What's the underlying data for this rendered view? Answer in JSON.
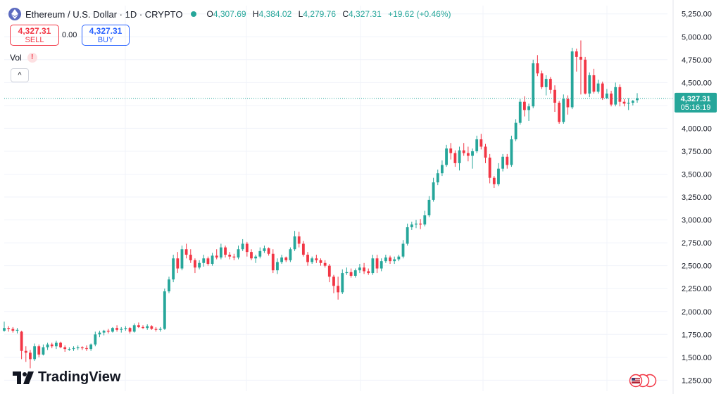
{
  "header": {
    "title": "Ethereum / U.S. Dollar · 1D · CRYPTO",
    "open_label": "O",
    "open": "4,307.69",
    "high_label": "H",
    "high": "4,384.02",
    "low_label": "L",
    "low": "4,279.76",
    "close_label": "C",
    "close": "4,327.31",
    "change": "+19.62 (+0.46%)"
  },
  "trade": {
    "sell_price": "4,327.31",
    "sell_label": "SELL",
    "spread": "0.00",
    "buy_price": "4,327.31",
    "buy_label": "BUY"
  },
  "indicator": {
    "vol_label": "Vol",
    "warning": "!",
    "collapse": "^"
  },
  "price_badge": {
    "price": "4,327.31",
    "countdown": "05:16:19"
  },
  "brand": {
    "name": "TradingView"
  },
  "colors": {
    "up": "#26a69a",
    "down": "#f23645",
    "grid": "#f0f3fa",
    "accent": "#2962ff"
  },
  "chart_data": {
    "type": "candlestick",
    "interval": "1D",
    "y_axis": {
      "ticks": [
        1250,
        1500,
        1750,
        2000,
        2250,
        2500,
        2750,
        3000,
        3250,
        3500,
        3750,
        4000,
        4250,
        4500,
        4750,
        5000,
        5250
      ],
      "tick_labels": [
        "1,250.00",
        "1,500.00",
        "1,750.00",
        "2,000.00",
        "2,250.00",
        "2,500.00",
        "2,750.00",
        "3,000.00",
        "3,250.00",
        "3,500.00",
        "3,750.00",
        "4,000.00",
        "4,250.00",
        "4,500.00",
        "4,750.00",
        "5,000.00",
        "5,250.00"
      ],
      "range": [
        1130,
        5340
      ]
    },
    "grid": true,
    "current_price": 4327.31,
    "candles": [
      [
        1790,
        1890,
        1780,
        1820
      ],
      [
        1820,
        1840,
        1780,
        1810
      ],
      [
        1810,
        1830,
        1770,
        1790
      ],
      [
        1790,
        1820,
        1760,
        1800
      ],
      [
        1780,
        1790,
        1480,
        1570
      ],
      [
        1570,
        1620,
        1450,
        1550
      ],
      [
        1550,
        1580,
        1380,
        1480
      ],
      [
        1480,
        1650,
        1460,
        1620
      ],
      [
        1620,
        1640,
        1500,
        1530
      ],
      [
        1530,
        1640,
        1520,
        1610
      ],
      [
        1610,
        1660,
        1580,
        1640
      ],
      [
        1640,
        1660,
        1600,
        1620
      ],
      [
        1620,
        1680,
        1590,
        1660
      ],
      [
        1660,
        1670,
        1600,
        1610
      ],
      [
        1610,
        1630,
        1560,
        1590
      ],
      [
        1590,
        1610,
        1570,
        1590
      ],
      [
        1590,
        1620,
        1570,
        1600
      ],
      [
        1600,
        1630,
        1580,
        1610
      ],
      [
        1610,
        1620,
        1580,
        1600
      ],
      [
        1600,
        1630,
        1570,
        1590
      ],
      [
        1590,
        1650,
        1570,
        1640
      ],
      [
        1640,
        1780,
        1620,
        1750
      ],
      [
        1750,
        1790,
        1720,
        1770
      ],
      [
        1770,
        1800,
        1740,
        1790
      ],
      [
        1790,
        1810,
        1760,
        1780
      ],
      [
        1780,
        1830,
        1770,
        1820
      ],
      [
        1820,
        1850,
        1780,
        1800
      ],
      [
        1800,
        1830,
        1770,
        1810
      ],
      [
        1810,
        1840,
        1790,
        1820
      ],
      [
        1820,
        1830,
        1760,
        1780
      ],
      [
        1780,
        1870,
        1770,
        1850
      ],
      [
        1850,
        1880,
        1820,
        1830
      ],
      [
        1830,
        1850,
        1810,
        1820
      ],
      [
        1820,
        1860,
        1800,
        1840
      ],
      [
        1840,
        1850,
        1800,
        1810
      ],
      [
        1810,
        1830,
        1780,
        1800
      ],
      [
        1800,
        1830,
        1780,
        1810
      ],
      [
        1810,
        2250,
        1800,
        2220
      ],
      [
        2220,
        2380,
        2200,
        2350
      ],
      [
        2350,
        2620,
        2320,
        2580
      ],
      [
        2580,
        2650,
        2420,
        2470
      ],
      [
        2470,
        2720,
        2450,
        2680
      ],
      [
        2680,
        2740,
        2580,
        2620
      ],
      [
        2620,
        2680,
        2530,
        2560
      ],
      [
        2560,
        2580,
        2420,
        2480
      ],
      [
        2480,
        2560,
        2460,
        2530
      ],
      [
        2530,
        2620,
        2490,
        2580
      ],
      [
        2580,
        2600,
        2500,
        2520
      ],
      [
        2520,
        2640,
        2500,
        2610
      ],
      [
        2610,
        2680,
        2570,
        2590
      ],
      [
        2590,
        2740,
        2570,
        2700
      ],
      [
        2700,
        2720,
        2590,
        2620
      ],
      [
        2620,
        2650,
        2570,
        2600
      ],
      [
        2600,
        2630,
        2560,
        2590
      ],
      [
        2590,
        2720,
        2570,
        2680
      ],
      [
        2680,
        2790,
        2660,
        2740
      ],
      [
        2740,
        2760,
        2600,
        2650
      ],
      [
        2650,
        2680,
        2560,
        2580
      ],
      [
        2580,
        2620,
        2530,
        2600
      ],
      [
        2600,
        2700,
        2580,
        2660
      ],
      [
        2660,
        2720,
        2640,
        2690
      ],
      [
        2690,
        2700,
        2610,
        2630
      ],
      [
        2630,
        2680,
        2420,
        2450
      ],
      [
        2450,
        2580,
        2410,
        2540
      ],
      [
        2540,
        2620,
        2520,
        2590
      ],
      [
        2590,
        2600,
        2540,
        2560
      ],
      [
        2560,
        2700,
        2540,
        2680
      ],
      [
        2680,
        2880,
        2660,
        2820
      ],
      [
        2820,
        2870,
        2700,
        2740
      ],
      [
        2740,
        2770,
        2600,
        2620
      ],
      [
        2620,
        2650,
        2500,
        2540
      ],
      [
        2540,
        2600,
        2520,
        2580
      ],
      [
        2580,
        2620,
        2530,
        2560
      ],
      [
        2560,
        2580,
        2500,
        2530
      ],
      [
        2530,
        2560,
        2480,
        2500
      ],
      [
        2500,
        2520,
        2320,
        2380
      ],
      [
        2380,
        2400,
        2200,
        2280
      ],
      [
        2280,
        2380,
        2130,
        2210
      ],
      [
        2210,
        2460,
        2190,
        2420
      ],
      [
        2420,
        2480,
        2400,
        2430
      ],
      [
        2430,
        2470,
        2370,
        2390
      ],
      [
        2390,
        2470,
        2370,
        2450
      ],
      [
        2450,
        2520,
        2420,
        2480
      ],
      [
        2480,
        2530,
        2410,
        2440
      ],
      [
        2440,
        2470,
        2400,
        2420
      ],
      [
        2420,
        2620,
        2400,
        2580
      ],
      [
        2580,
        2620,
        2420,
        2470
      ],
      [
        2470,
        2580,
        2440,
        2550
      ],
      [
        2550,
        2620,
        2530,
        2590
      ],
      [
        2590,
        2610,
        2520,
        2550
      ],
      [
        2550,
        2600,
        2520,
        2570
      ],
      [
        2570,
        2620,
        2550,
        2600
      ],
      [
        2600,
        2780,
        2580,
        2740
      ],
      [
        2740,
        2960,
        2720,
        2920
      ],
      [
        2920,
        2980,
        2890,
        2950
      ],
      [
        2950,
        3000,
        2910,
        2960
      ],
      [
        2960,
        3010,
        2900,
        2950
      ],
      [
        2950,
        3100,
        2930,
        3050
      ],
      [
        3050,
        3260,
        3030,
        3220
      ],
      [
        3220,
        3460,
        3200,
        3410
      ],
      [
        3410,
        3550,
        3380,
        3510
      ],
      [
        3510,
        3650,
        3480,
        3600
      ],
      [
        3600,
        3820,
        3580,
        3780
      ],
      [
        3780,
        3840,
        3660,
        3730
      ],
      [
        3730,
        3760,
        3580,
        3620
      ],
      [
        3620,
        3800,
        3540,
        3760
      ],
      [
        3760,
        3840,
        3700,
        3730
      ],
      [
        3730,
        3800,
        3640,
        3700
      ],
      [
        3700,
        3780,
        3560,
        3750
      ],
      [
        3750,
        3920,
        3730,
        3880
      ],
      [
        3880,
        3940,
        3770,
        3800
      ],
      [
        3800,
        3830,
        3620,
        3680
      ],
      [
        3680,
        3720,
        3400,
        3460
      ],
      [
        3460,
        3480,
        3350,
        3390
      ],
      [
        3390,
        3620,
        3370,
        3560
      ],
      [
        3560,
        3720,
        3530,
        3690
      ],
      [
        3690,
        3720,
        3560,
        3600
      ],
      [
        3600,
        3920,
        3580,
        3880
      ],
      [
        3880,
        4100,
        3860,
        4060
      ],
      [
        4060,
        4320,
        4040,
        4290
      ],
      [
        4290,
        4350,
        4130,
        4200
      ],
      [
        4200,
        4270,
        4080,
        4240
      ],
      [
        4240,
        4750,
        4220,
        4710
      ],
      [
        4710,
        4800,
        4570,
        4600
      ],
      [
        4600,
        4630,
        4430,
        4450
      ],
      [
        4450,
        4580,
        4360,
        4540
      ],
      [
        4540,
        4560,
        4380,
        4420
      ],
      [
        4420,
        4470,
        4180,
        4280
      ],
      [
        4280,
        4300,
        4050,
        4070
      ],
      [
        4070,
        4370,
        4050,
        4320
      ],
      [
        4320,
        4360,
        4150,
        4230
      ],
      [
        4230,
        4880,
        4210,
        4840
      ],
      [
        4840,
        4870,
        4620,
        4780
      ],
      [
        4780,
        4960,
        4370,
        4750
      ],
      [
        4750,
        4780,
        4370,
        4380
      ],
      [
        4380,
        4610,
        4340,
        4580
      ],
      [
        4580,
        4650,
        4380,
        4400
      ],
      [
        4400,
        4530,
        4380,
        4490
      ],
      [
        4490,
        4510,
        4310,
        4330
      ],
      [
        4330,
        4430,
        4320,
        4380
      ],
      [
        4380,
        4410,
        4240,
        4260
      ],
      [
        4260,
        4500,
        4240,
        4450
      ],
      [
        4450,
        4480,
        4240,
        4290
      ],
      [
        4290,
        4320,
        4240,
        4270
      ],
      [
        4270,
        4330,
        4200,
        4280
      ],
      [
        4280,
        4310,
        4250,
        4300
      ],
      [
        4307.69,
        4384.02,
        4279.76,
        4327.31
      ]
    ]
  }
}
